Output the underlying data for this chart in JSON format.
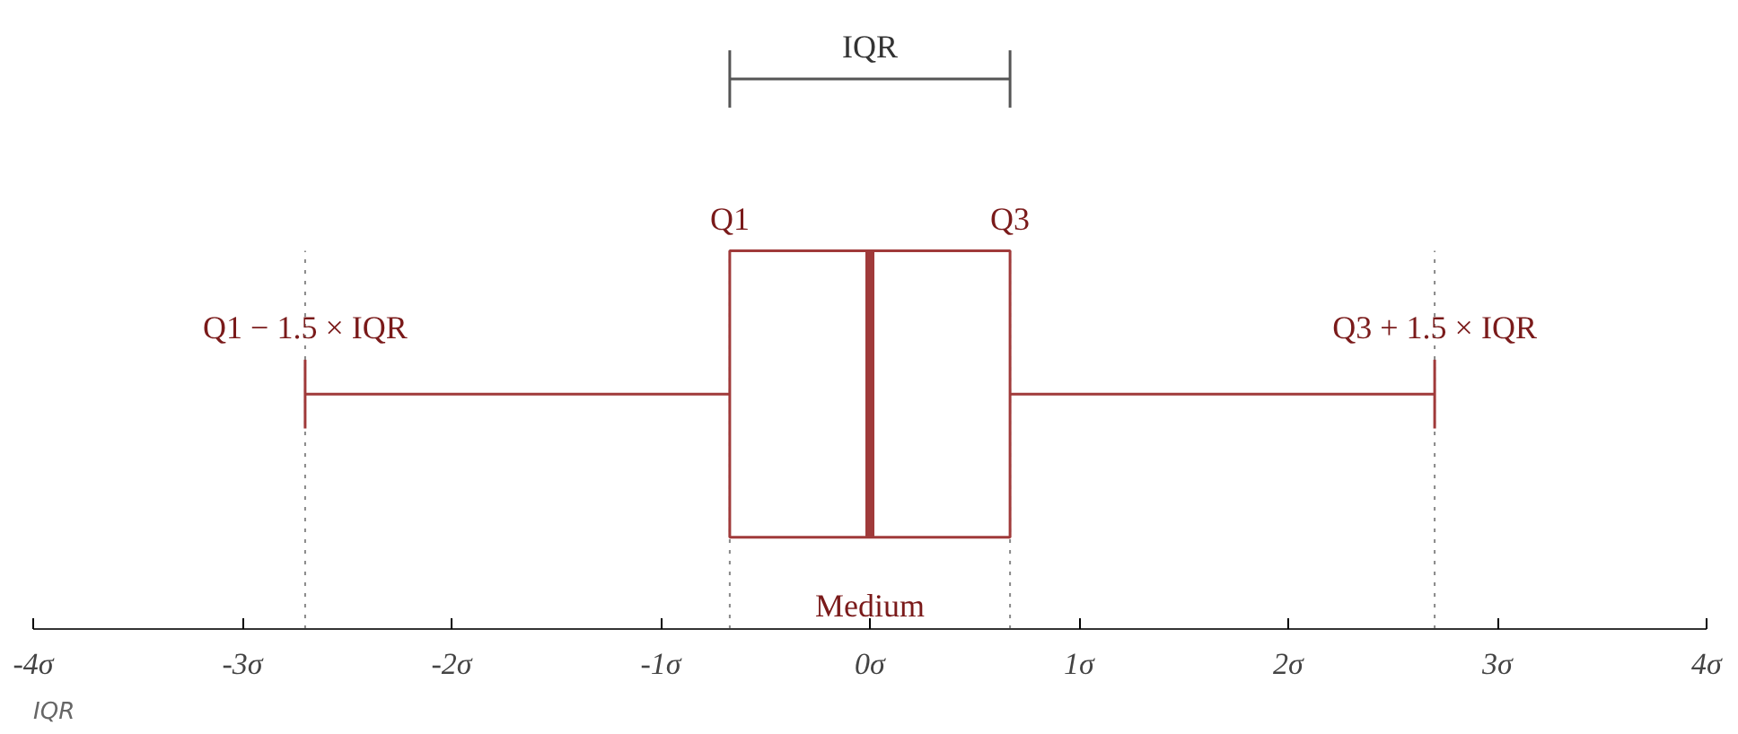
{
  "chart_data": {
    "type": "box",
    "orientation": "horizontal",
    "categories": [
      null
    ],
    "color": "#a03a3a",
    "boxes": [
      {
        "low": -2.7,
        "q1": -0.67,
        "median": 0,
        "q3": 0.67,
        "high": 2.7
      }
    ],
    "xlim": [
      -4,
      4
    ],
    "xticks": [
      {
        "value": -4,
        "label": "-4σ"
      },
      {
        "value": -3,
        "label": "-3σ"
      },
      {
        "value": -2,
        "label": "-2σ"
      },
      {
        "value": -1,
        "label": "-1σ"
      },
      {
        "value": 0,
        "label": "0σ"
      },
      {
        "value": 1,
        "label": "1σ"
      },
      {
        "value": 2,
        "label": "2σ"
      },
      {
        "value": 3,
        "label": "3σ"
      },
      {
        "value": 4,
        "label": "4σ"
      }
    ],
    "ref_lines": [
      {
        "axis": "x",
        "value": -2.7,
        "line_style": "dotted",
        "color": "#888888"
      },
      {
        "axis": "x",
        "value": -0.67,
        "line_style": "dotted",
        "color": "#888888"
      },
      {
        "axis": "x",
        "value": 0.67,
        "line_style": "dotted",
        "color": "#888888"
      },
      {
        "axis": "x",
        "value": 2.7,
        "line_style": "dotted",
        "color": "#888888"
      }
    ],
    "annotations": [
      "IQR",
      "Q1",
      "Q3",
      "Q1 − 1.5 × IQR",
      "Q3 + 1.5 × IQR",
      "Medium",
      "IQR"
    ],
    "grid": false
  }
}
